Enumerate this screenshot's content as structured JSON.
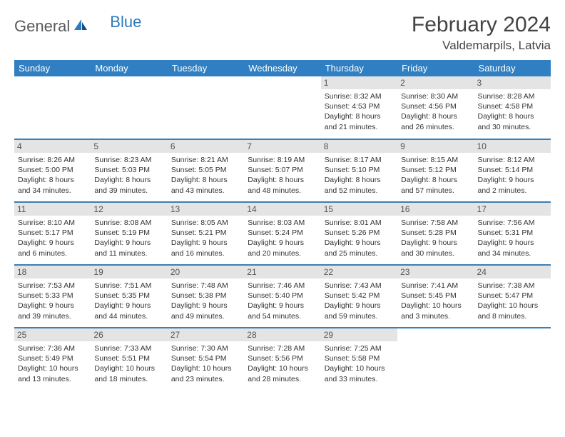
{
  "brand": {
    "word1": "General",
    "word2": "Blue"
  },
  "title": "February 2024",
  "location": "Valdemarpils, Latvia",
  "colors": {
    "header_bg": "#2f7fc2",
    "header_text": "#ffffff",
    "row_divider": "#3a7fb5",
    "daynum_bg": "#e4e4e4",
    "logo_gray": "#5a5a5a",
    "logo_blue": "#2b7bbf"
  },
  "weekdays": [
    "Sunday",
    "Monday",
    "Tuesday",
    "Wednesday",
    "Thursday",
    "Friday",
    "Saturday"
  ],
  "weeks": [
    [
      null,
      null,
      null,
      null,
      {
        "n": "1",
        "sr": "Sunrise: 8:32 AM",
        "ss": "Sunset: 4:53 PM",
        "d1": "Daylight: 8 hours",
        "d2": "and 21 minutes."
      },
      {
        "n": "2",
        "sr": "Sunrise: 8:30 AM",
        "ss": "Sunset: 4:56 PM",
        "d1": "Daylight: 8 hours",
        "d2": "and 26 minutes."
      },
      {
        "n": "3",
        "sr": "Sunrise: 8:28 AM",
        "ss": "Sunset: 4:58 PM",
        "d1": "Daylight: 8 hours",
        "d2": "and 30 minutes."
      }
    ],
    [
      {
        "n": "4",
        "sr": "Sunrise: 8:26 AM",
        "ss": "Sunset: 5:00 PM",
        "d1": "Daylight: 8 hours",
        "d2": "and 34 minutes."
      },
      {
        "n": "5",
        "sr": "Sunrise: 8:23 AM",
        "ss": "Sunset: 5:03 PM",
        "d1": "Daylight: 8 hours",
        "d2": "and 39 minutes."
      },
      {
        "n": "6",
        "sr": "Sunrise: 8:21 AM",
        "ss": "Sunset: 5:05 PM",
        "d1": "Daylight: 8 hours",
        "d2": "and 43 minutes."
      },
      {
        "n": "7",
        "sr": "Sunrise: 8:19 AM",
        "ss": "Sunset: 5:07 PM",
        "d1": "Daylight: 8 hours",
        "d2": "and 48 minutes."
      },
      {
        "n": "8",
        "sr": "Sunrise: 8:17 AM",
        "ss": "Sunset: 5:10 PM",
        "d1": "Daylight: 8 hours",
        "d2": "and 52 minutes."
      },
      {
        "n": "9",
        "sr": "Sunrise: 8:15 AM",
        "ss": "Sunset: 5:12 PM",
        "d1": "Daylight: 8 hours",
        "d2": "and 57 minutes."
      },
      {
        "n": "10",
        "sr": "Sunrise: 8:12 AM",
        "ss": "Sunset: 5:14 PM",
        "d1": "Daylight: 9 hours",
        "d2": "and 2 minutes."
      }
    ],
    [
      {
        "n": "11",
        "sr": "Sunrise: 8:10 AM",
        "ss": "Sunset: 5:17 PM",
        "d1": "Daylight: 9 hours",
        "d2": "and 6 minutes."
      },
      {
        "n": "12",
        "sr": "Sunrise: 8:08 AM",
        "ss": "Sunset: 5:19 PM",
        "d1": "Daylight: 9 hours",
        "d2": "and 11 minutes."
      },
      {
        "n": "13",
        "sr": "Sunrise: 8:05 AM",
        "ss": "Sunset: 5:21 PM",
        "d1": "Daylight: 9 hours",
        "d2": "and 16 minutes."
      },
      {
        "n": "14",
        "sr": "Sunrise: 8:03 AM",
        "ss": "Sunset: 5:24 PM",
        "d1": "Daylight: 9 hours",
        "d2": "and 20 minutes."
      },
      {
        "n": "15",
        "sr": "Sunrise: 8:01 AM",
        "ss": "Sunset: 5:26 PM",
        "d1": "Daylight: 9 hours",
        "d2": "and 25 minutes."
      },
      {
        "n": "16",
        "sr": "Sunrise: 7:58 AM",
        "ss": "Sunset: 5:28 PM",
        "d1": "Daylight: 9 hours",
        "d2": "and 30 minutes."
      },
      {
        "n": "17",
        "sr": "Sunrise: 7:56 AM",
        "ss": "Sunset: 5:31 PM",
        "d1": "Daylight: 9 hours",
        "d2": "and 34 minutes."
      }
    ],
    [
      {
        "n": "18",
        "sr": "Sunrise: 7:53 AM",
        "ss": "Sunset: 5:33 PM",
        "d1": "Daylight: 9 hours",
        "d2": "and 39 minutes."
      },
      {
        "n": "19",
        "sr": "Sunrise: 7:51 AM",
        "ss": "Sunset: 5:35 PM",
        "d1": "Daylight: 9 hours",
        "d2": "and 44 minutes."
      },
      {
        "n": "20",
        "sr": "Sunrise: 7:48 AM",
        "ss": "Sunset: 5:38 PM",
        "d1": "Daylight: 9 hours",
        "d2": "and 49 minutes."
      },
      {
        "n": "21",
        "sr": "Sunrise: 7:46 AM",
        "ss": "Sunset: 5:40 PM",
        "d1": "Daylight: 9 hours",
        "d2": "and 54 minutes."
      },
      {
        "n": "22",
        "sr": "Sunrise: 7:43 AM",
        "ss": "Sunset: 5:42 PM",
        "d1": "Daylight: 9 hours",
        "d2": "and 59 minutes."
      },
      {
        "n": "23",
        "sr": "Sunrise: 7:41 AM",
        "ss": "Sunset: 5:45 PM",
        "d1": "Daylight: 10 hours",
        "d2": "and 3 minutes."
      },
      {
        "n": "24",
        "sr": "Sunrise: 7:38 AM",
        "ss": "Sunset: 5:47 PM",
        "d1": "Daylight: 10 hours",
        "d2": "and 8 minutes."
      }
    ],
    [
      {
        "n": "25",
        "sr": "Sunrise: 7:36 AM",
        "ss": "Sunset: 5:49 PM",
        "d1": "Daylight: 10 hours",
        "d2": "and 13 minutes."
      },
      {
        "n": "26",
        "sr": "Sunrise: 7:33 AM",
        "ss": "Sunset: 5:51 PM",
        "d1": "Daylight: 10 hours",
        "d2": "and 18 minutes."
      },
      {
        "n": "27",
        "sr": "Sunrise: 7:30 AM",
        "ss": "Sunset: 5:54 PM",
        "d1": "Daylight: 10 hours",
        "d2": "and 23 minutes."
      },
      {
        "n": "28",
        "sr": "Sunrise: 7:28 AM",
        "ss": "Sunset: 5:56 PM",
        "d1": "Daylight: 10 hours",
        "d2": "and 28 minutes."
      },
      {
        "n": "29",
        "sr": "Sunrise: 7:25 AM",
        "ss": "Sunset: 5:58 PM",
        "d1": "Daylight: 10 hours",
        "d2": "and 33 minutes."
      },
      null,
      null
    ]
  ]
}
